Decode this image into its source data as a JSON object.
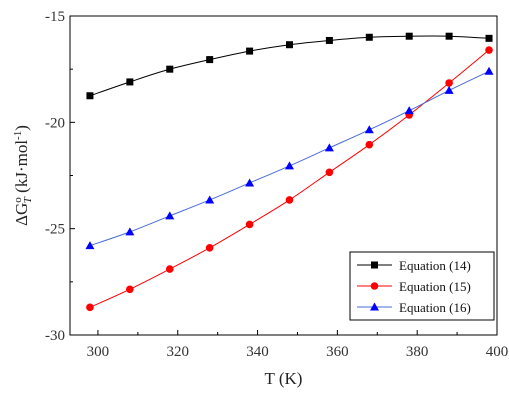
{
  "chart_data": {
    "type": "line",
    "xlabel": "T (K)",
    "ylabel": {
      "base": "ΔG",
      "sup": "o",
      "sub": "T",
      "unit_pre": " (kJ·mol",
      "unit_sup": "-1",
      "unit_post": ")"
    },
    "xlim": [
      293,
      400
    ],
    "ylim": [
      -30,
      -15
    ],
    "xticks": [
      300,
      320,
      340,
      360,
      380,
      400
    ],
    "yticks": [
      -30,
      -25,
      -20,
      -15
    ],
    "grid": false,
    "legend_position": "bottom-right",
    "x": [
      298,
      308,
      318,
      328,
      338,
      348,
      358,
      368,
      378,
      388,
      398
    ],
    "series": [
      {
        "name": "Equation (14)",
        "marker": "square",
        "color": "#000000",
        "line_color": "#000000",
        "values": [
          -18.75,
          -18.1,
          -17.5,
          -17.05,
          -16.65,
          -16.35,
          -16.15,
          -16.0,
          -15.95,
          -15.95,
          -16.05
        ]
      },
      {
        "name": "Equation (15)",
        "marker": "circle",
        "color": "#ff0000",
        "line_color": "#ff0000",
        "values": [
          -28.7,
          -27.85,
          -26.9,
          -25.9,
          -24.8,
          -23.65,
          -22.35,
          -21.05,
          -19.65,
          -18.15,
          -16.6
        ]
      },
      {
        "name": "Equation (16)",
        "marker": "triangle",
        "color": "#0000ff",
        "line_color": "#4a6bd8",
        "values": [
          -25.8,
          -25.15,
          -24.4,
          -23.65,
          -22.85,
          -22.05,
          -21.2,
          -20.35,
          -19.45,
          -18.5,
          -17.6
        ]
      }
    ]
  }
}
